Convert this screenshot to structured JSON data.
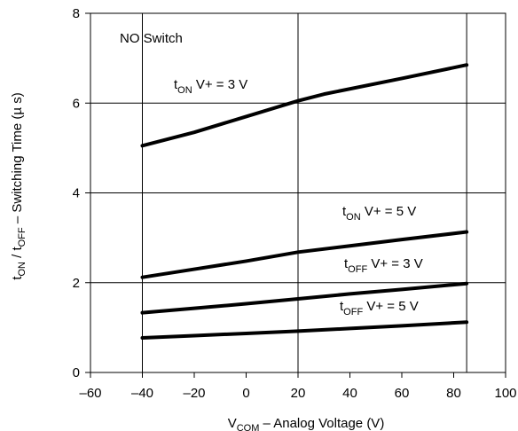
{
  "chart_data": {
    "type": "line",
    "title": "",
    "plot_label": "NO Switch",
    "xlabel": {
      "main": "V",
      "sub": "COM",
      "rest": " – Analog Voltage (V)"
    },
    "ylabel": {
      "t1": "t",
      "sub1": "ON",
      "mid": "  /  t",
      "sub2": "OFF",
      "rest": "  – Switching Time (µ s)"
    },
    "xlim": [
      -60,
      100
    ],
    "ylim": [
      0,
      8
    ],
    "x_ticks": [
      -60,
      -40,
      -20,
      0,
      20,
      40,
      60,
      80,
      100
    ],
    "y_ticks": [
      0,
      2,
      4,
      6,
      8
    ],
    "x_tick_labels": [
      "–60",
      "–40",
      "–20",
      "0",
      "20",
      "40",
      "60",
      "80",
      "100"
    ],
    "y_tick_labels": [
      "0",
      "2",
      "4",
      "6",
      "8"
    ],
    "grid": {
      "vertical": [
        -40,
        20,
        85
      ],
      "horizontal": [
        2,
        4,
        6
      ]
    },
    "series": [
      {
        "name": "t ON V+ = 3 V",
        "x": [
          -40,
          -20,
          0,
          20,
          30,
          60,
          85
        ],
        "y": [
          5.05,
          5.35,
          5.7,
          6.05,
          6.2,
          6.55,
          6.85
        ]
      },
      {
        "name": "t ON V+ = 5 V",
        "x": [
          -40,
          -20,
          0,
          20,
          40,
          60,
          85
        ],
        "y": [
          2.12,
          2.3,
          2.48,
          2.68,
          2.82,
          2.96,
          3.13
        ]
      },
      {
        "name": "t OFF V+ = 3 V",
        "x": [
          -40,
          -20,
          0,
          20,
          40,
          60,
          85
        ],
        "y": [
          1.33,
          1.43,
          1.53,
          1.64,
          1.75,
          1.85,
          1.98
        ]
      },
      {
        "name": "t OFF V+ = 5 V",
        "x": [
          -40,
          -20,
          0,
          20,
          40,
          60,
          85
        ],
        "y": [
          0.77,
          0.82,
          0.87,
          0.92,
          0.98,
          1.04,
          1.12
        ]
      }
    ],
    "annotations": [
      {
        "t": "t",
        "sub": "ON",
        "rest": " V+ = 3 V"
      },
      {
        "t": "t",
        "sub": "ON",
        "rest": " V+ = 5 V"
      },
      {
        "t": "t",
        "sub": "OFF",
        "rest": " V+ = 3 V"
      },
      {
        "t": "t",
        "sub": "OFF",
        "rest": " V+ = 5 V"
      }
    ],
    "colors": {
      "line": "#000000",
      "axis": "#000000",
      "background": "#ffffff"
    }
  }
}
